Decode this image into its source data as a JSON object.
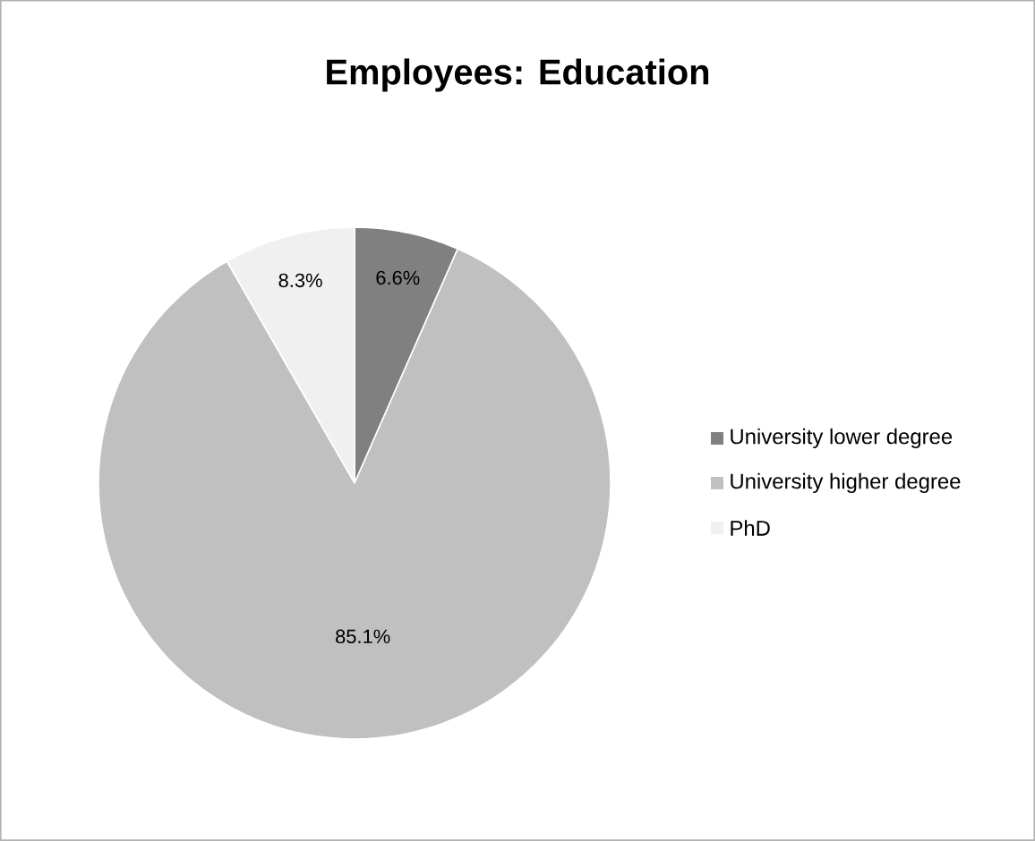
{
  "chart_data": {
    "type": "pie",
    "title": "Employees: Education",
    "categories": [
      "University lower degree",
      "University higher degree",
      "PhD"
    ],
    "values": [
      6.6,
      85.1,
      8.3
    ],
    "value_labels": [
      "6.6%",
      "85.1%",
      "8.3%"
    ],
    "colors": [
      "#808080",
      "#c0c0c0",
      "#f0f0f0"
    ],
    "legend": "right"
  }
}
